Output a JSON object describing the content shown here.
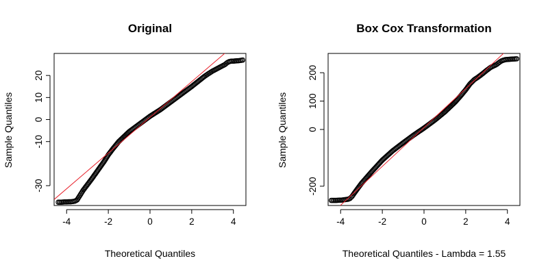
{
  "chart_data": [
    {
      "type": "scatter",
      "title": "Original",
      "xlabel": "Theoretical Quantiles",
      "ylabel": "Sample Quantiles",
      "xlim": [
        -4.6,
        4.6
      ],
      "ylim": [
        -39,
        30
      ],
      "xticks": [
        -4,
        -2,
        0,
        2,
        4
      ],
      "yticks": [
        -30,
        -10,
        0,
        10,
        20
      ],
      "grid": false,
      "series": [
        {
          "points": [
            [
              -4.4,
              -37.5
            ],
            [
              -4.25,
              -37.5
            ],
            [
              -4.1,
              -37.4
            ],
            [
              -4.0,
              -37.4
            ],
            [
              -3.9,
              -37.3
            ],
            [
              -3.8,
              -37.3
            ],
            [
              -3.7,
              -37.2
            ],
            [
              -3.6,
              -37.0
            ],
            [
              -3.5,
              -36.5
            ],
            [
              -3.4,
              -35.0
            ],
            [
              -3.3,
              -33.5
            ],
            [
              -3.2,
              -32.0
            ],
            [
              -3.0,
              -29.5
            ],
            [
              -2.8,
              -27.0
            ],
            [
              -2.5,
              -23.0
            ],
            [
              -2.2,
              -19.0
            ],
            [
              -2.0,
              -16.0
            ],
            [
              -1.8,
              -13.5
            ],
            [
              -1.5,
              -10.0
            ],
            [
              -1.0,
              -5.5
            ],
            [
              -0.5,
              -2.0
            ],
            [
              0.0,
              1.5
            ],
            [
              0.5,
              4.5
            ],
            [
              1.0,
              8.0
            ],
            [
              1.5,
              11.5
            ],
            [
              2.0,
              15.0
            ],
            [
              2.2,
              16.5
            ],
            [
              2.4,
              18.0
            ],
            [
              2.6,
              19.5
            ],
            [
              2.8,
              20.8
            ],
            [
              3.0,
              22.0
            ],
            [
              3.2,
              23.0
            ],
            [
              3.4,
              24.0
            ],
            [
              3.6,
              25.0
            ],
            [
              3.7,
              25.8
            ],
            [
              3.8,
              26.3
            ],
            [
              3.9,
              26.5
            ],
            [
              4.0,
              26.5
            ],
            [
              4.1,
              26.6
            ],
            [
              4.25,
              26.7
            ],
            [
              4.45,
              27.0
            ]
          ],
          "marker": "open-circle",
          "color": "#000000"
        }
      ],
      "reference_line": {
        "slope": 8.1,
        "intercept": 1.0,
        "color": "#e8202a"
      }
    },
    {
      "type": "scatter",
      "title": "Box Cox Transformation",
      "xlabel": "Theoretical Quantiles - Lambda = 1.55",
      "ylabel": "Sample Quantiles",
      "xlim": [
        -4.6,
        4.6
      ],
      "ylim": [
        -268,
        268
      ],
      "xticks": [
        -4,
        -2,
        0,
        2,
        4
      ],
      "yticks": [
        -200,
        0,
        100,
        200
      ],
      "grid": false,
      "series": [
        {
          "points": [
            [
              -4.45,
              -250
            ],
            [
              -4.2,
              -250
            ],
            [
              -4.05,
              -249
            ],
            [
              -3.95,
              -249
            ],
            [
              -3.85,
              -248
            ],
            [
              -3.75,
              -247
            ],
            [
              -3.65,
              -246
            ],
            [
              -3.55,
              -243
            ],
            [
              -3.45,
              -236
            ],
            [
              -3.35,
              -225
            ],
            [
              -3.2,
              -210
            ],
            [
              -3.0,
              -190
            ],
            [
              -2.5,
              -148
            ],
            [
              -2.0,
              -108
            ],
            [
              -1.5,
              -75
            ],
            [
              -1.0,
              -47
            ],
            [
              -0.5,
              -20
            ],
            [
              0.0,
              5
            ],
            [
              0.5,
              32
            ],
            [
              1.0,
              62
            ],
            [
              1.5,
              97
            ],
            [
              1.8,
              122
            ],
            [
              2.0,
              140
            ],
            [
              2.2,
              160
            ],
            [
              2.4,
              175
            ],
            [
              2.6,
              185
            ],
            [
              2.8,
              196
            ],
            [
              3.0,
              208
            ],
            [
              3.2,
              219
            ],
            [
              3.4,
              226
            ],
            [
              3.5,
              230
            ],
            [
              3.6,
              236
            ],
            [
              3.7,
              241
            ],
            [
              3.8,
              244
            ],
            [
              3.9,
              246
            ],
            [
              4.05,
              247
            ],
            [
              4.2,
              248
            ],
            [
              4.45,
              249
            ]
          ],
          "marker": "open-circle",
          "color": "#000000"
        }
      ],
      "reference_line": {
        "slope": 68.5,
        "intercept": 7,
        "color": "#e8202a"
      }
    }
  ]
}
